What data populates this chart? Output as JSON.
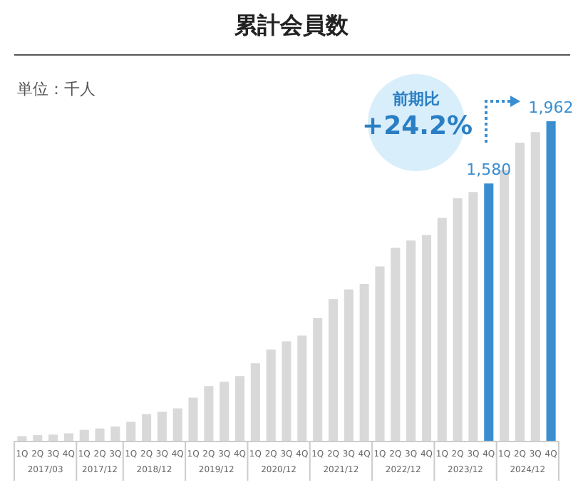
{
  "chart_data": {
    "type": "bar",
    "title": "累計会員数",
    "annotations": [
      "単位：千人",
      "前期比",
      "+24.2%",
      "2017/03",
      "2017/12",
      "2018/12",
      "2019/12",
      "2020/12",
      "2021/12",
      "2022/12",
      "2023/12",
      "2024/12"
    ],
    "categories": [
      "1Q",
      "2Q",
      "3Q",
      "4Q",
      "1Q",
      "2Q",
      "3Q",
      "1Q",
      "2Q",
      "3Q",
      "4Q",
      "1Q",
      "2Q",
      "3Q",
      "4Q",
      "1Q",
      "2Q",
      "3Q",
      "4Q",
      "1Q",
      "2Q",
      "3Q",
      "4Q",
      "1Q",
      "2Q",
      "3Q",
      "4Q",
      "1Q",
      "2Q",
      "3Q",
      "4Q",
      "1Q",
      "2Q",
      "3Q",
      "4Q"
    ],
    "values": [
      29,
      35,
      38,
      46,
      67,
      76,
      88,
      117,
      164,
      178,
      199,
      265,
      336,
      362,
      397,
      476,
      561,
      611,
      646,
      753,
      870,
      929,
      964,
      1071,
      1185,
      1229,
      1264,
      1369,
      1489,
      1527,
      1580,
      1664,
      1831,
      1895,
      1962
    ],
    "colors": [
      "#d9d9d9",
      "#d9d9d9",
      "#d9d9d9",
      "#d9d9d9",
      "#d9d9d9",
      "#d9d9d9",
      "#d9d9d9",
      "#d9d9d9",
      "#d9d9d9",
      "#d9d9d9",
      "#d9d9d9",
      "#d9d9d9",
      "#d9d9d9",
      "#d9d9d9",
      "#d9d9d9",
      "#d9d9d9",
      "#d9d9d9",
      "#d9d9d9",
      "#d9d9d9",
      "#d9d9d9",
      "#d9d9d9",
      "#d9d9d9",
      "#d9d9d9",
      "#d9d9d9",
      "#d9d9d9",
      "#d9d9d9",
      "#d9d9d9",
      "#d9d9d9",
      "#d9d9d9",
      "#d9d9d9",
      "#3a8ed0",
      "#d9d9d9",
      "#d9d9d9",
      "#d9d9d9",
      "#3a8ed0"
    ],
    "value_labels": [
      null,
      null,
      null,
      null,
      null,
      null,
      null,
      null,
      null,
      null,
      null,
      null,
      null,
      null,
      null,
      null,
      null,
      null,
      null,
      null,
      null,
      null,
      null,
      null,
      null,
      null,
      null,
      null,
      null,
      null,
      "1,580",
      null,
      null,
      null,
      "1,962"
    ]
  }
}
